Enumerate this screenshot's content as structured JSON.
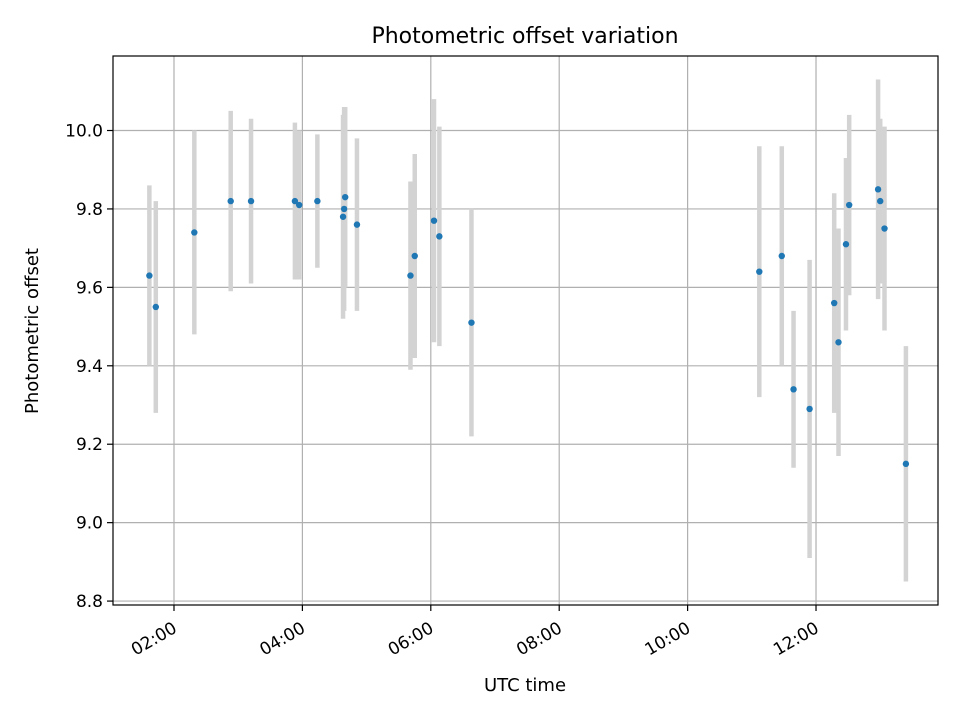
{
  "chart_data": {
    "type": "scatter",
    "title": "Photometric offset variation",
    "xlabel": "UTC time",
    "ylabel": "Photometric offset",
    "x_axis_kind": "time-of-day",
    "xlim": [
      "01:03",
      "13:54"
    ],
    "ylim": [
      8.79,
      10.19
    ],
    "grid": true,
    "x_ticks": [
      "02:00",
      "04:00",
      "06:00",
      "08:00",
      "10:00",
      "12:00"
    ],
    "y_ticks": [
      8.8,
      9.0,
      9.2,
      9.4,
      9.6,
      9.8,
      10.0
    ],
    "colors": {
      "point": "#1f77b4",
      "error_bar": "#d3d3d3",
      "grid": "#b0b0b0"
    },
    "series": [
      {
        "points": [
          {
            "x": "01:37",
            "y": 9.63,
            "yerr": 0.23
          },
          {
            "x": "01:43",
            "y": 9.55,
            "yerr": 0.27
          },
          {
            "x": "02:19",
            "y": 9.74,
            "yerr": 0.26
          },
          {
            "x": "02:53",
            "y": 9.82,
            "yerr": 0.23
          },
          {
            "x": "03:12",
            "y": 9.82,
            "yerr": 0.21
          },
          {
            "x": "03:53",
            "y": 9.82,
            "yerr": 0.2
          },
          {
            "x": "03:57",
            "y": 9.81,
            "yerr": 0.19
          },
          {
            "x": "04:14",
            "y": 9.82,
            "yerr": 0.17
          },
          {
            "x": "04:38",
            "y": 9.78,
            "yerr": 0.26
          },
          {
            "x": "04:39",
            "y": 9.8,
            "yerr": 0.26
          },
          {
            "x": "04:40",
            "y": 9.83,
            "yerr": 0.23
          },
          {
            "x": "04:51",
            "y": 9.76,
            "yerr": 0.22
          },
          {
            "x": "05:41",
            "y": 9.63,
            "yerr": 0.24
          },
          {
            "x": "05:45",
            "y": 9.68,
            "yerr": 0.26
          },
          {
            "x": "06:03",
            "y": 9.77,
            "yerr": 0.31
          },
          {
            "x": "06:08",
            "y": 9.73,
            "yerr": 0.28
          },
          {
            "x": "06:38",
            "y": 9.51,
            "yerr": 0.29
          },
          {
            "x": "11:07",
            "y": 9.64,
            "yerr": 0.32
          },
          {
            "x": "11:28",
            "y": 9.68,
            "yerr": 0.28
          },
          {
            "x": "11:39",
            "y": 9.34,
            "yerr": 0.2
          },
          {
            "x": "11:54",
            "y": 9.29,
            "yerr": 0.38
          },
          {
            "x": "12:17",
            "y": 9.56,
            "yerr": 0.28
          },
          {
            "x": "12:21",
            "y": 9.46,
            "yerr": 0.29
          },
          {
            "x": "12:28",
            "y": 9.71,
            "yerr": 0.22
          },
          {
            "x": "12:31",
            "y": 9.81,
            "yerr": 0.23
          },
          {
            "x": "12:58",
            "y": 9.85,
            "yerr": 0.28
          },
          {
            "x": "13:00",
            "y": 9.82,
            "yerr": 0.21
          },
          {
            "x": "13:04",
            "y": 9.75,
            "yerr": 0.26
          },
          {
            "x": "13:24",
            "y": 9.15,
            "yerr": 0.3
          }
        ]
      }
    ]
  }
}
